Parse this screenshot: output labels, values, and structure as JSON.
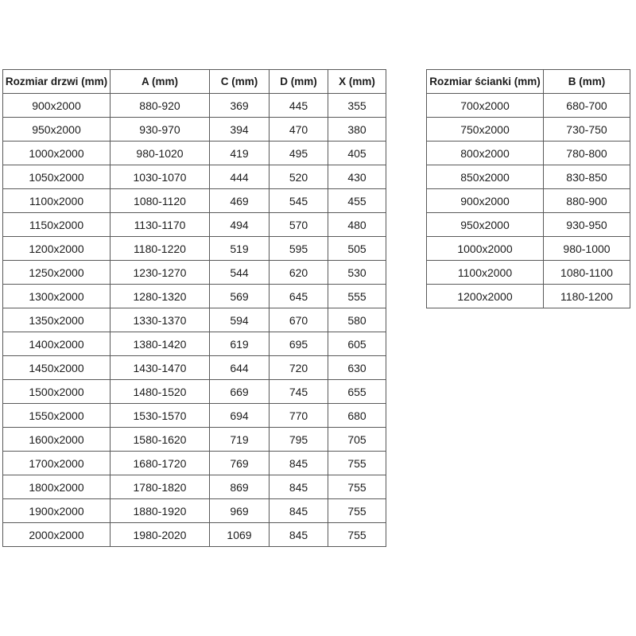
{
  "page": {
    "background_color": "#ffffff",
    "text_color": "#1c1c1c",
    "border_color": "#595959"
  },
  "door_table": {
    "headers": [
      "Rozmiar drzwi (mm)",
      "A (mm)",
      "C (mm)",
      "D (mm)",
      "X (mm)"
    ],
    "rows": [
      [
        "900x2000",
        "880-920",
        "369",
        "445",
        "355"
      ],
      [
        "950x2000",
        "930-970",
        "394",
        "470",
        "380"
      ],
      [
        "1000x2000",
        "980-1020",
        "419",
        "495",
        "405"
      ],
      [
        "1050x2000",
        "1030-1070",
        "444",
        "520",
        "430"
      ],
      [
        "1100x2000",
        "1080-1120",
        "469",
        "545",
        "455"
      ],
      [
        "1150x2000",
        "1130-1170",
        "494",
        "570",
        "480"
      ],
      [
        "1200x2000",
        "1180-1220",
        "519",
        "595",
        "505"
      ],
      [
        "1250x2000",
        "1230-1270",
        "544",
        "620",
        "530"
      ],
      [
        "1300x2000",
        "1280-1320",
        "569",
        "645",
        "555"
      ],
      [
        "1350x2000",
        "1330-1370",
        "594",
        "670",
        "580"
      ],
      [
        "1400x2000",
        "1380-1420",
        "619",
        "695",
        "605"
      ],
      [
        "1450x2000",
        "1430-1470",
        "644",
        "720",
        "630"
      ],
      [
        "1500x2000",
        "1480-1520",
        "669",
        "745",
        "655"
      ],
      [
        "1550x2000",
        "1530-1570",
        "694",
        "770",
        "680"
      ],
      [
        "1600x2000",
        "1580-1620",
        "719",
        "795",
        "705"
      ],
      [
        "1700x2000",
        "1680-1720",
        "769",
        "845",
        "755"
      ],
      [
        "1800x2000",
        "1780-1820",
        "869",
        "845",
        "755"
      ],
      [
        "1900x2000",
        "1880-1920",
        "969",
        "845",
        "755"
      ],
      [
        "2000x2000",
        "1980-2020",
        "1069",
        "845",
        "755"
      ]
    ]
  },
  "wall_table": {
    "headers": [
      "Rozmiar ścianki (mm)",
      "B (mm)"
    ],
    "rows": [
      [
        "700x2000",
        "680-700"
      ],
      [
        "750x2000",
        "730-750"
      ],
      [
        "800x2000",
        "780-800"
      ],
      [
        "850x2000",
        "830-850"
      ],
      [
        "900x2000",
        "880-900"
      ],
      [
        "950x2000",
        "930-950"
      ],
      [
        "1000x2000",
        "980-1000"
      ],
      [
        "1100x2000",
        "1080-1100"
      ],
      [
        "1200x2000",
        "1180-1200"
      ]
    ]
  }
}
